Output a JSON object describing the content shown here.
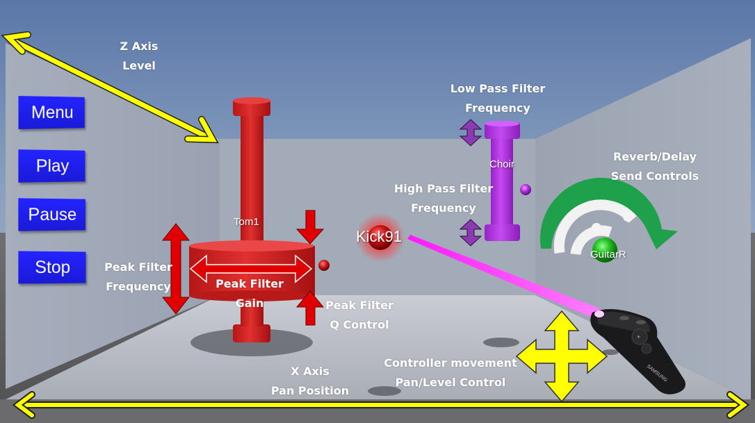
{
  "menu": {
    "menu_label": "Menu",
    "play_label": "Play",
    "pause_label": "Pause",
    "stop_label": "Stop"
  },
  "annotations": {
    "z_axis": [
      "Z Axis",
      "Level"
    ],
    "low_pass": [
      "Low Pass Filter",
      "Frequency"
    ],
    "high_pass": [
      "High Pass Filter",
      "Frequency"
    ],
    "reverb": [
      "Reverb/Delay",
      "Send Controls"
    ],
    "peak_freq": [
      "Peak Filter",
      "Frequency"
    ],
    "peak_gain": [
      "Peak Filter",
      "Gain"
    ],
    "peak_q": [
      "Peak Filter",
      "Q Control"
    ],
    "x_axis": [
      "X Axis",
      "Pan Position"
    ],
    "controller": [
      "Controller movement",
      "Pan/Level Control"
    ]
  },
  "tracks": {
    "tom": "Tom1",
    "kick": "Kick91",
    "choir": "Choir",
    "guitar": "GuitarR"
  },
  "controller_brand": "SAMSUNG",
  "colors": {
    "menu_button": "#2020ee",
    "arrow_yellow": "#ffff00",
    "arrow_red": "#e00000",
    "arrow_purple": "#8a3bb0",
    "tom_object": "#d42020",
    "choir_object": "#b030e0",
    "guitar_object": "#20c020",
    "reverb_arc": "#1fa04a",
    "pointer_ray": "#ff1aff"
  }
}
